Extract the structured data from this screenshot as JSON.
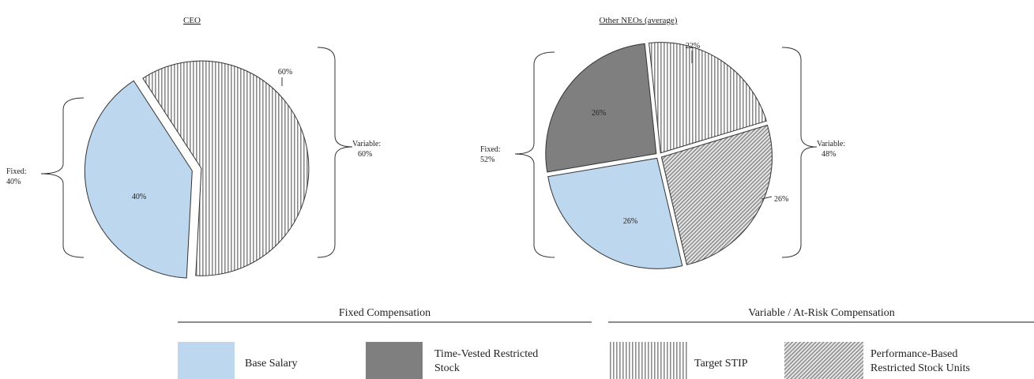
{
  "colors": {
    "base_salary": "#bdd7ee",
    "time_vested": "#7f7f7f",
    "stip_stripe": "#8c8c8c",
    "psu_stripe": "#8c8c8c",
    "outline": "#333333"
  },
  "chart_data": [
    {
      "type": "pie",
      "title": "CEO",
      "slices": [
        {
          "label": "Target STIP",
          "value": 60,
          "display": "60%",
          "pattern": "vertical-stripes"
        },
        {
          "label": "Base Salary",
          "value": 40,
          "display": "40%",
          "pattern": "solid-light-blue"
        }
      ],
      "group_labels": [
        {
          "side": "left",
          "line1": "Fixed:",
          "line2": "40%"
        },
        {
          "side": "right",
          "line1": "Variable:",
          "line2": "60%"
        }
      ]
    },
    {
      "type": "pie",
      "title": "Other NEOs (average)",
      "slices": [
        {
          "label": "Target STIP",
          "value": 22,
          "display": "22%",
          "pattern": "vertical-stripes"
        },
        {
          "label": "Performance-Based Restricted Stock Units",
          "value": 26,
          "display": "26%",
          "pattern": "diagonal-stripes"
        },
        {
          "label": "Base Salary",
          "value": 26,
          "display": "26%",
          "pattern": "solid-light-blue"
        },
        {
          "label": "Time-Vested Restricted Stock",
          "value": 26,
          "display": "26%",
          "pattern": "solid-gray"
        }
      ],
      "group_labels": [
        {
          "side": "left",
          "line1": "Fixed:",
          "line2": "52%"
        },
        {
          "side": "right",
          "line1": "Variable:",
          "line2": "48%"
        }
      ]
    }
  ],
  "legend": {
    "groups": [
      {
        "label": "Fixed Compensation"
      },
      {
        "label": "Variable / At-Risk Compensation"
      }
    ],
    "items": [
      {
        "line1": "Base Salary",
        "line2": "",
        "pattern": "solid-light-blue"
      },
      {
        "line1": "Time-Vested Restricted",
        "line2": "Stock",
        "pattern": "solid-gray"
      },
      {
        "line1": "Target STIP",
        "line2": "",
        "pattern": "vertical-stripes"
      },
      {
        "line1": "Performance-Based",
        "line2": "Restricted Stock Units",
        "pattern": "diagonal-stripes"
      }
    ]
  }
}
